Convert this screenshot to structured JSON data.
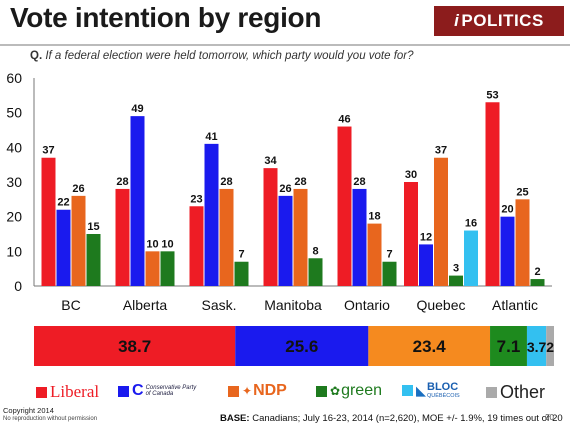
{
  "header": {
    "title": "Vote intention by region",
    "logo_text": "POLITICS",
    "logo_mark": "i",
    "question_prefix": "Q.",
    "question": "If a federal election were held tomorrow, which party would you vote for?"
  },
  "colors": {
    "liberal": "#ee1c25",
    "conservative": "#1a1aee",
    "ndp": "#e8661e",
    "green": "#1e7a1e",
    "bloc": "#33c0f0",
    "other": "#aaaaaa"
  },
  "chart_data": [
    {
      "type": "bar",
      "categories": [
        "BC",
        "Alberta",
        "Sask.",
        "Manitoba",
        "Ontario",
        "Quebec",
        "Atlantic"
      ],
      "series": [
        {
          "name": "Liberal",
          "color": "#ee1c25",
          "values": [
            37,
            28,
            23,
            34,
            46,
            30,
            53
          ]
        },
        {
          "name": "Conservative Party of Canada",
          "color": "#1a1aee",
          "values": [
            22,
            49,
            41,
            26,
            28,
            12,
            20
          ]
        },
        {
          "name": "NDP",
          "color": "#e8661e",
          "values": [
            26,
            10,
            28,
            28,
            18,
            37,
            25
          ]
        },
        {
          "name": "green",
          "color": "#1e7a1e",
          "values": [
            15,
            10,
            7,
            8,
            7,
            3,
            2
          ]
        },
        {
          "name": "BLOC QUÉBÉCOIS",
          "color": "#33c0f0",
          "values": [
            null,
            null,
            null,
            null,
            null,
            16,
            null
          ]
        }
      ],
      "yticks": [
        0,
        10,
        20,
        30,
        40,
        50,
        60
      ],
      "ylim": [
        0,
        60
      ],
      "grid": false
    },
    {
      "type": "bar",
      "orientation": "stacked-horizontal",
      "segments": [
        {
          "name": "Liberal",
          "color": "#ee1c25",
          "value": 38.7,
          "label": "38.7"
        },
        {
          "name": "Conservative Party of Canada",
          "color": "#1a1aee",
          "value": 25.6,
          "label": "25.6"
        },
        {
          "name": "NDP",
          "color": "#f58a1f",
          "value": 23.4,
          "label": "23.4"
        },
        {
          "name": "green",
          "color": "#1e8a1e",
          "value": 7.1,
          "label": "7.1"
        },
        {
          "name": "BLOC QUÉBÉCOIS",
          "color": "#33c0f0",
          "value": 3.7,
          "label": "3.7"
        },
        {
          "name": "Other",
          "color": "#aaaaaa",
          "value": 1.5,
          "label": "2"
        }
      ]
    }
  ],
  "legend": {
    "liberal": "Liberal",
    "conservative_line1": "Conservative Party",
    "conservative_line2": "of Canada",
    "ndp": "NDP",
    "green": "green",
    "bloc_line1": "BLOC",
    "bloc_line2": "QUÉBÉCOIS",
    "other": "Other"
  },
  "footer": {
    "copyright": "Copyright 2014",
    "copyright_sub": "No reproduction without permission",
    "base_label": "BASE:",
    "base_text": "Canadians; July 16-23, 2014 (n=2,620), MOE +/- 1.9%, 19 times out of 20",
    "page_number": "20"
  }
}
